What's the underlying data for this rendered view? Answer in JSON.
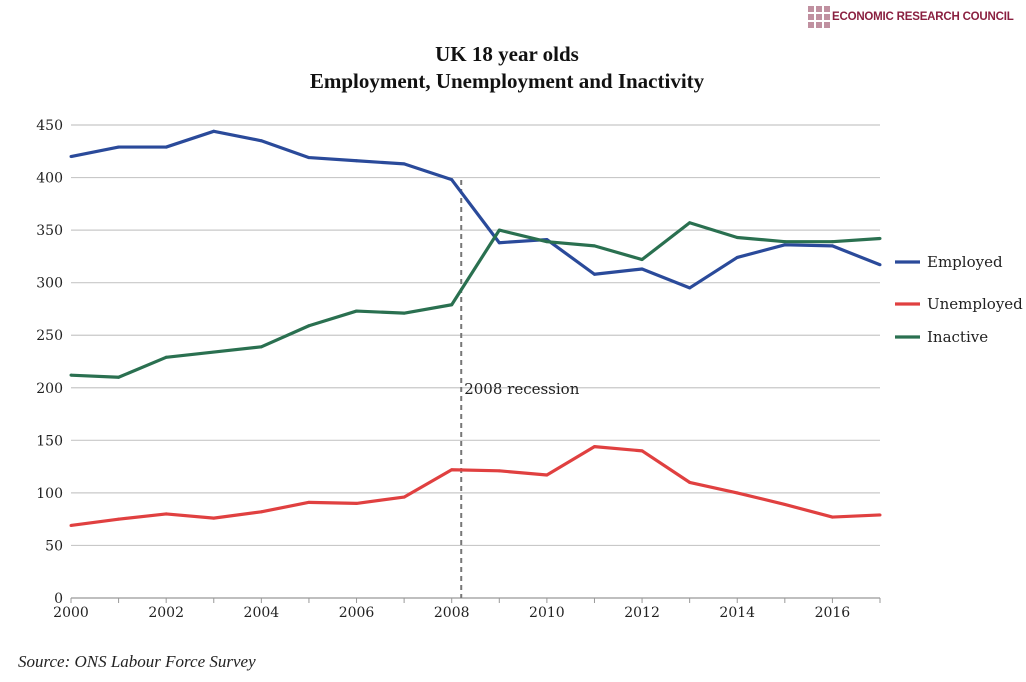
{
  "brand": {
    "name": "ECONOMIC RESEARCH COUNCIL",
    "color": "#8a2040"
  },
  "source": "Source: ONS Labour Force Survey",
  "chart_data": {
    "type": "line",
    "title": [
      "UK 18 year olds",
      "Employment, Unemployment and Inactivity"
    ],
    "xlabel": "",
    "ylabel": "",
    "x": [
      2000,
      2001,
      2002,
      2003,
      2004,
      2005,
      2006,
      2007,
      2008,
      2009,
      2010,
      2011,
      2012,
      2013,
      2014,
      2015,
      2016,
      2017
    ],
    "xlim": [
      2000,
      2017
    ],
    "ylim": [
      0,
      450
    ],
    "xticks": [
      2000,
      2002,
      2004,
      2006,
      2008,
      2010,
      2012,
      2014,
      2016
    ],
    "yticks": [
      0,
      50,
      100,
      150,
      200,
      250,
      300,
      350,
      400,
      450
    ],
    "grid": "horizontal",
    "legend": "right",
    "series": [
      {
        "name": "Employed",
        "color": "#2a4a9a",
        "values": [
          420,
          429,
          429,
          444,
          435,
          419,
          416,
          413,
          398,
          338,
          341,
          308,
          313,
          295,
          324,
          336,
          335,
          317
        ]
      },
      {
        "name": "Unemployed",
        "color": "#e04040",
        "values": [
          69,
          75,
          80,
          76,
          82,
          91,
          90,
          96,
          122,
          121,
          117,
          144,
          140,
          110,
          100,
          89,
          77,
          79
        ]
      },
      {
        "name": "Inactive",
        "color": "#2a7050",
        "values": [
          212,
          210,
          229,
          234,
          239,
          259,
          273,
          271,
          279,
          350,
          339,
          335,
          322,
          357,
          343,
          339,
          339,
          342
        ]
      }
    ],
    "annotations": [
      {
        "text": "2008 recession",
        "x": 2008.2,
        "style": "dashed vertical line"
      }
    ]
  }
}
